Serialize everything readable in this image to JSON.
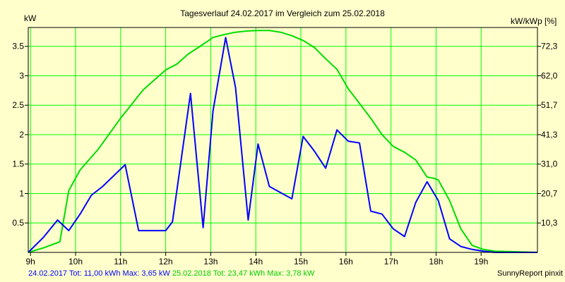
{
  "chart_data": {
    "type": "line",
    "title": "Tagesverlauf 24.02.2017 im Vergleich zum 25.02.2018",
    "ylabel_left": "kW",
    "ylabel_right": "kW/kWp [%]",
    "x_unit": "hours",
    "xlim": [
      8.95,
      20.25
    ],
    "ylim": [
      0,
      3.82
    ],
    "x_ticks": [
      {
        "x": 9,
        "label": "9h"
      },
      {
        "x": 10,
        "label": "10h"
      },
      {
        "x": 11,
        "label": "11h"
      },
      {
        "x": 12,
        "label": "12h"
      },
      {
        "x": 13,
        "label": "13h"
      },
      {
        "x": 14,
        "label": "14h"
      },
      {
        "x": 15,
        "label": "15h"
      },
      {
        "x": 16,
        "label": "16h"
      },
      {
        "x": 17,
        "label": "17h"
      },
      {
        "x": 18,
        "label": "18h"
      },
      {
        "x": 19,
        "label": "19h"
      }
    ],
    "y_ticks_left": [
      {
        "y": 0.5,
        "label": "0.5"
      },
      {
        "y": 1,
        "label": "1"
      },
      {
        "y": 1.5,
        "label": "1.5"
      },
      {
        "y": 2,
        "label": "2"
      },
      {
        "y": 2.5,
        "label": "2.5"
      },
      {
        "y": 3,
        "label": "3"
      },
      {
        "y": 3.5,
        "label": "3.5"
      }
    ],
    "y_ticks_right": [
      {
        "y": 0.5,
        "label": "10,3"
      },
      {
        "y": 1,
        "label": "20,7"
      },
      {
        "y": 1.5,
        "label": "31,0"
      },
      {
        "y": 2,
        "label": "41,3"
      },
      {
        "y": 2.5,
        "label": "51,7"
      },
      {
        "y": 3,
        "label": "62,0"
      },
      {
        "y": 3.5,
        "label": "72,3"
      }
    ],
    "grid": true,
    "series": [
      {
        "name": "24.02.2017",
        "color": "#0000ff",
        "x": [
          8.95,
          9.28,
          9.6,
          9.85,
          10.1,
          10.35,
          10.6,
          11.1,
          11.4,
          11.7,
          12.0,
          12.15,
          12.55,
          12.83,
          13.05,
          13.33,
          13.55,
          13.83,
          14.05,
          14.3,
          14.8,
          15.05,
          15.3,
          15.55,
          15.8,
          16.05,
          16.3,
          16.55,
          16.8,
          17.05,
          17.3,
          17.55,
          17.8,
          18.05,
          18.3,
          18.55,
          18.8,
          19.05,
          19.3,
          19.55,
          20.25
        ],
        "values": [
          0.0,
          0.25,
          0.55,
          0.37,
          0.65,
          0.97,
          1.12,
          1.49,
          0.37,
          0.37,
          0.37,
          0.52,
          2.7,
          0.42,
          2.4,
          3.65,
          2.8,
          0.55,
          1.84,
          1.12,
          0.91,
          1.97,
          1.72,
          1.43,
          2.08,
          1.89,
          1.86,
          0.7,
          0.65,
          0.4,
          0.27,
          0.85,
          1.2,
          0.88,
          0.23,
          0.1,
          0.05,
          0.02,
          0.0,
          0.0,
          0.0
        ]
      },
      {
        "name": "25.02.2018",
        "color": "#00dd00",
        "x": [
          8.95,
          9.3,
          9.65,
          9.85,
          10.1,
          10.5,
          11.0,
          11.5,
          12.0,
          12.25,
          12.5,
          12.8,
          13.05,
          13.3,
          13.55,
          13.8,
          14.05,
          14.3,
          14.55,
          14.8,
          15.05,
          15.3,
          15.55,
          15.8,
          16.05,
          16.3,
          16.55,
          16.8,
          17.05,
          17.3,
          17.55,
          17.8,
          17.95,
          18.05,
          18.3,
          18.55,
          18.8,
          19.05,
          19.3,
          20.25
        ],
        "values": [
          0.0,
          0.08,
          0.18,
          1.05,
          1.4,
          1.75,
          2.28,
          2.76,
          3.1,
          3.2,
          3.37,
          3.52,
          3.65,
          3.7,
          3.74,
          3.76,
          3.77,
          3.77,
          3.74,
          3.68,
          3.6,
          3.48,
          3.29,
          3.11,
          2.78,
          2.53,
          2.28,
          2.0,
          1.8,
          1.7,
          1.57,
          1.28,
          1.26,
          1.23,
          0.88,
          0.4,
          0.12,
          0.05,
          0.02,
          0.0
        ]
      }
    ]
  },
  "footer": {
    "s1_date": "24.02.2017",
    "s1_stats": "Tot: 11,00 kWh Max: 3,65 kW",
    "s2_date": "25.02.2018",
    "s2_stats": "Tot: 23,47 kWh Max: 3,78 kW",
    "credit": "SunnyReport pinxit"
  }
}
